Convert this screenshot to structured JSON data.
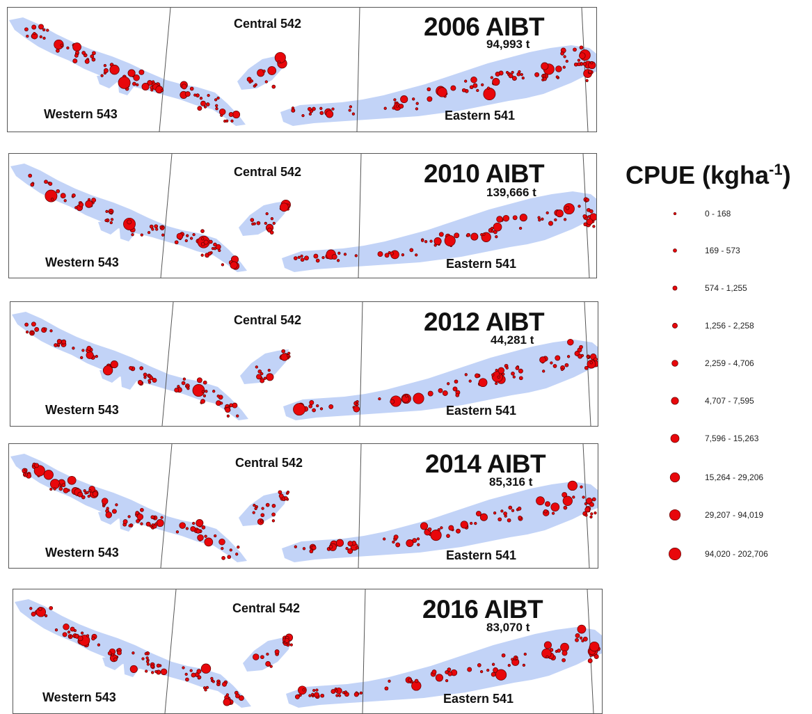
{
  "colors": {
    "land": "#c2d3f7",
    "dot_fill": "#e8070b",
    "dot_stroke": "#5a0000",
    "frame": "#555555"
  },
  "panels": [
    {
      "title": "2006 AIBT",
      "tonnes": "94,993 t",
      "regions": {
        "western": "Western 543",
        "central": "Central 542",
        "eastern": "Eastern 541"
      }
    },
    {
      "title": "2010 AIBT",
      "tonnes": "139,666 t",
      "regions": {
        "western": "Western 543",
        "central": "Central 542",
        "eastern": "Eastern 541"
      }
    },
    {
      "title": "2012 AIBT",
      "tonnes": "44,281 t",
      "regions": {
        "western": "Western 543",
        "central": "Central 542",
        "eastern": "Eastern 541"
      }
    },
    {
      "title": "2014 AIBT",
      "tonnes": "85,316 t",
      "regions": {
        "western": "Western 543",
        "central": "Central 542",
        "eastern": "Eastern 541"
      }
    },
    {
      "title": "2016 AIBT",
      "tonnes": "83,070 t",
      "regions": {
        "western": "Western 543",
        "central": "Central 542",
        "eastern": "Eastern 541"
      }
    }
  ],
  "legend": {
    "title": "CPUE (kgha",
    "title_sup": "-1",
    "title_close": ")",
    "classes": [
      {
        "label": "0 - 168"
      },
      {
        "label": "169 - 573"
      },
      {
        "label": "574 - 1,255"
      },
      {
        "label": "1,256 - 2,258"
      },
      {
        "label": "2,259 - 4,706"
      },
      {
        "label": "4,707 - 7,595"
      },
      {
        "label": "7,596 - 15,263"
      },
      {
        "label": "15,264 - 29,206"
      },
      {
        "label": "29,207 - 94,019"
      },
      {
        "label": "94,020 - 202,706"
      }
    ]
  }
}
